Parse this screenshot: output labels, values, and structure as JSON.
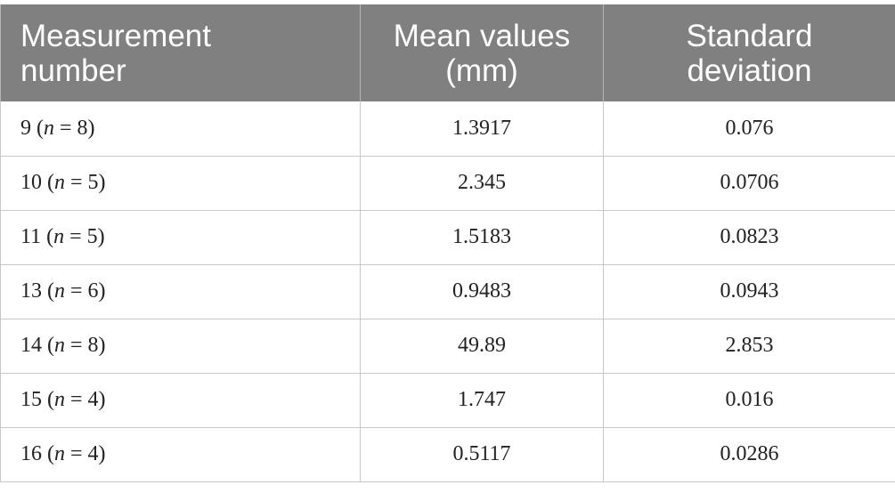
{
  "table": {
    "headers": {
      "measurement": [
        "Measurement",
        "number"
      ],
      "mean": [
        "Mean values",
        "(mm)"
      ],
      "sd": [
        "Standard",
        "deviation"
      ]
    },
    "rows": [
      {
        "number": "9",
        "n_symbol": "n",
        "n_eq": " = 8",
        "mean": "1.3917",
        "sd": "0.076"
      },
      {
        "number": "10",
        "n_symbol": "n",
        "n_eq": " = 5",
        "mean": "2.345",
        "sd": "0.0706"
      },
      {
        "number": "11",
        "n_symbol": "n",
        "n_eq": " = 5",
        "mean": "1.5183",
        "sd": "0.0823"
      },
      {
        "number": "13",
        "n_symbol": "n",
        "n_eq": " = 6",
        "mean": "0.9483",
        "sd": "0.0943"
      },
      {
        "number": "14",
        "n_symbol": "n",
        "n_eq": " = 8",
        "mean": "49.89",
        "sd": "2.853"
      },
      {
        "number": "15",
        "n_symbol": "n",
        "n_eq": " = 4",
        "mean": "1.747",
        "sd": "0.016"
      },
      {
        "number": "16",
        "n_symbol": "n",
        "n_eq": " = 4",
        "mean": "0.5117",
        "sd": "0.0286"
      }
    ]
  },
  "colors": {
    "header_background": "#808080",
    "header_text": "#ffffff",
    "grid_line": "#c8c8c8"
  }
}
